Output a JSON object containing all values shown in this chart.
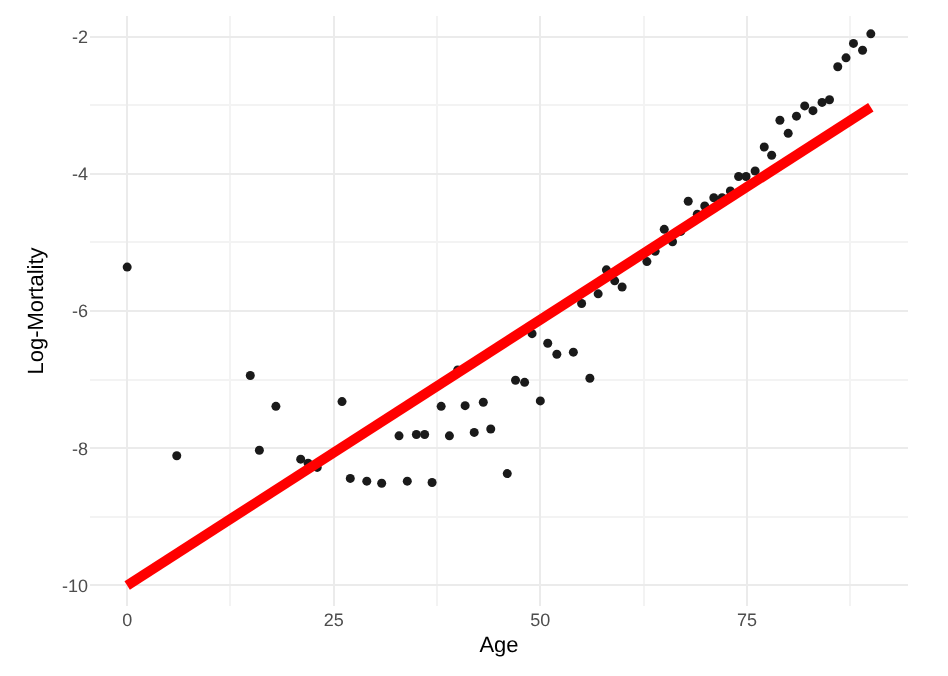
{
  "chart_data": {
    "type": "scatter",
    "xlabel": "Age",
    "ylabel": "Log-Mortality",
    "xlim": [
      -4.5,
      94.5
    ],
    "ylim": [
      -10.3,
      -1.7
    ],
    "xticks": [
      0,
      25,
      50,
      75
    ],
    "yticks": [
      -10,
      -8,
      -6,
      -4,
      -2
    ],
    "grid": true,
    "marker": "circle",
    "series": [
      {
        "color": "#1a1a1a",
        "x": [
          0,
          6,
          14.9,
          16,
          18,
          21,
          21.9,
          23,
          26,
          27,
          29,
          30.8,
          32.9,
          33.9,
          35,
          36,
          36.9,
          38,
          39,
          40,
          40.9,
          42,
          43.1,
          44,
          46,
          47,
          48.1,
          49,
          50,
          50.9,
          52,
          54,
          55,
          56,
          57,
          58,
          59,
          59.9,
          62.9,
          63.9,
          65,
          66,
          67,
          67.9,
          69,
          69.9,
          71,
          72,
          73,
          74,
          74.9,
          76,
          77.1,
          78,
          79,
          80,
          81,
          82,
          83,
          84.1,
          85,
          86,
          87,
          87.9,
          89,
          90
        ],
        "values": [
          -5.36,
          -8.11,
          -6.94,
          -8.03,
          -7.39,
          -8.16,
          -8.22,
          -8.28,
          -7.32,
          -8.44,
          -8.48,
          -8.51,
          -7.82,
          -8.48,
          -7.8,
          -7.8,
          -8.5,
          -7.39,
          -7.82,
          -6.86,
          -7.38,
          -7.77,
          -7.33,
          -7.72,
          -8.37,
          -7.01,
          -7.04,
          -6.33,
          -7.31,
          -6.47,
          -6.63,
          -6.6,
          -5.89,
          -6.98,
          -5.75,
          -5.4,
          -5.56,
          -5.65,
          -5.28,
          -5.13,
          -4.81,
          -4.99,
          -4.84,
          -4.4,
          -4.59,
          -4.47,
          -4.35,
          -4.35,
          -4.25,
          -4.04,
          -4.04,
          -3.96,
          -3.61,
          -3.73,
          -3.22,
          -3.41,
          -3.16,
          -3.01,
          -3.08,
          -2.96,
          -2.92,
          -2.44,
          -2.31,
          -2.1,
          -2.2,
          -1.96
        ]
      },
      {
        "type": "line",
        "color": "#ff0000",
        "marker": "none",
        "line_style": "solid",
        "x": [
          0,
          90
        ],
        "values": [
          -10.0,
          -3.03
        ]
      }
    ]
  }
}
